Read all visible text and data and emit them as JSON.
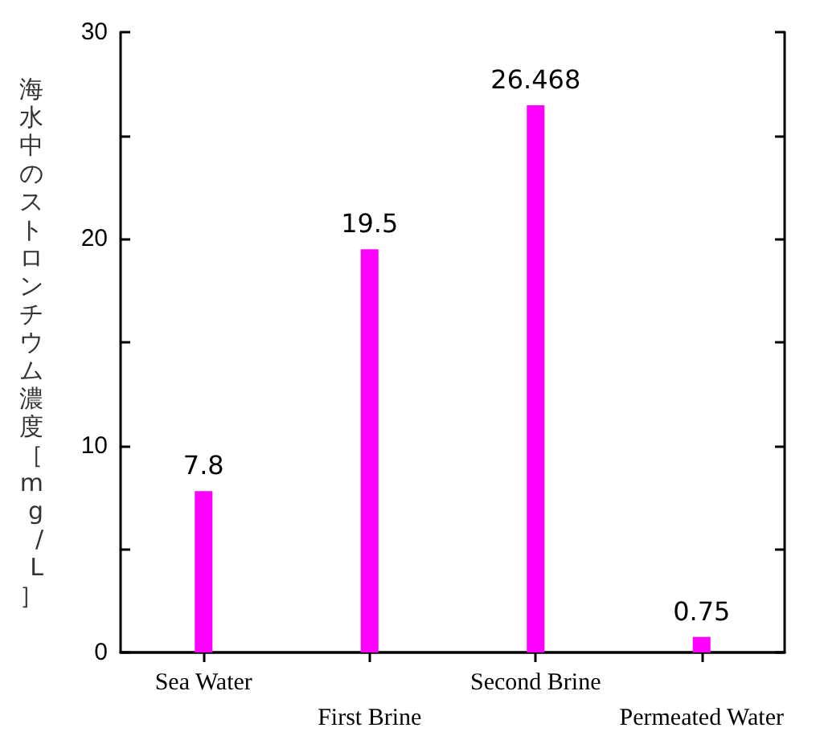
{
  "chart_data": {
    "type": "bar",
    "ylabel": "海水中のストロンチウム濃度［mg/L］",
    "categories": [
      "Sea Water",
      "First Brine",
      "Second Brine",
      "Permeated Water"
    ],
    "values": [
      7.8,
      19.5,
      26.468,
      0.75
    ],
    "color": "#ff00ff",
    "data_labels": true,
    "ylim": [
      0,
      30
    ],
    "yticks": [
      0,
      {
        "value": 5,
        "label": null
      },
      10,
      {
        "value": 15,
        "label": null
      },
      20,
      {
        "value": 25,
        "label": null
      },
      30
    ],
    "grid": false
  }
}
